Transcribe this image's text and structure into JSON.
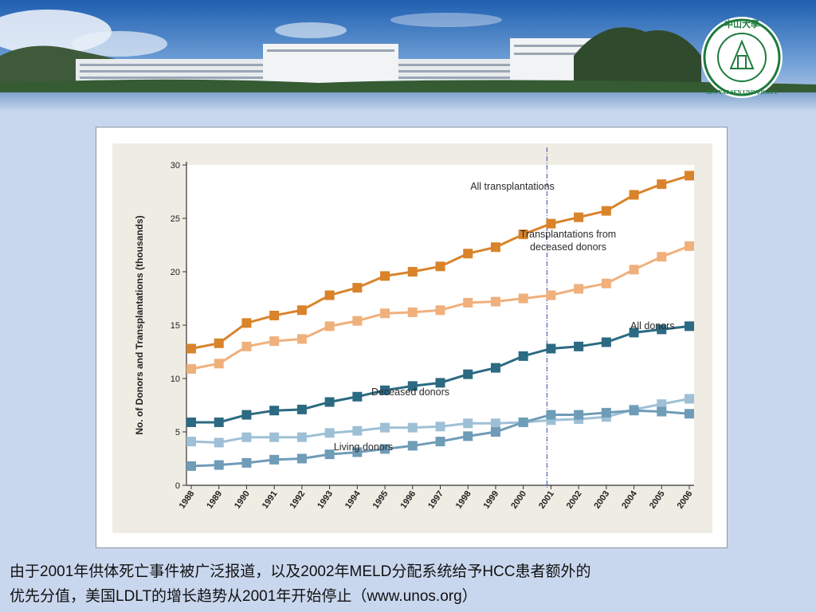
{
  "colors": {
    "background": "#c9d7ee",
    "all_transplantations": "#d9832a",
    "deceased_transplantations": "#f0b07c",
    "all_donors": "#2b6a82",
    "deceased_donors": "#9ec0d6",
    "living_donors": "#6f9cb7",
    "marker_line": "#3349b8"
  },
  "logo": {
    "name": "sun-yat-sen-university-seal",
    "text_top": "中山大學",
    "text_bottom": "SUN YAT-SEN UNIVERSITY"
  },
  "chart_data": {
    "type": "line",
    "ylabel": "No. of Donors and Transplantations (thousands)",
    "xlabel": "",
    "ylim": [
      0,
      30
    ],
    "yticks": [
      0,
      5,
      10,
      15,
      20,
      25,
      30
    ],
    "categories": [
      "1988",
      "1989",
      "1990",
      "1991",
      "1992",
      "1993",
      "1994",
      "1995",
      "1996",
      "1997",
      "1998",
      "1999",
      "2000",
      "2001",
      "2002",
      "2003",
      "2004",
      "2005",
      "2006"
    ],
    "vertical_marker": "2001",
    "grid": false,
    "series": [
      {
        "name": "All transplantations",
        "key": "all_transplantations",
        "values": [
          12.8,
          13.3,
          15.2,
          15.9,
          16.4,
          17.8,
          18.5,
          19.6,
          20.0,
          20.5,
          21.7,
          22.3,
          23.5,
          24.5,
          25.1,
          25.7,
          27.2,
          28.2,
          29.0
        ]
      },
      {
        "name": "Transplantations from deceased donors",
        "key": "deceased_transplantations",
        "values": [
          10.9,
          11.4,
          13.0,
          13.5,
          13.7,
          14.9,
          15.4,
          16.1,
          16.2,
          16.4,
          17.1,
          17.2,
          17.5,
          17.8,
          18.4,
          18.9,
          20.2,
          21.4,
          22.4
        ]
      },
      {
        "name": "All donors",
        "key": "all_donors",
        "values": [
          5.9,
          5.9,
          6.6,
          7.0,
          7.1,
          7.8,
          8.3,
          8.9,
          9.3,
          9.6,
          10.4,
          11.0,
          12.1,
          12.8,
          13.0,
          13.4,
          14.3,
          14.6,
          14.9
        ]
      },
      {
        "name": "Deceased donors",
        "key": "deceased_donors",
        "values": [
          4.1,
          4.0,
          4.5,
          4.5,
          4.5,
          4.9,
          5.1,
          5.4,
          5.4,
          5.5,
          5.8,
          5.8,
          5.9,
          6.1,
          6.2,
          6.4,
          7.1,
          7.6,
          8.1
        ]
      },
      {
        "name": "Living donors",
        "key": "living_donors",
        "values": [
          1.8,
          1.9,
          2.1,
          2.4,
          2.5,
          2.9,
          3.1,
          3.4,
          3.7,
          4.1,
          4.6,
          5.0,
          5.9,
          6.6,
          6.6,
          6.8,
          7.0,
          6.9,
          6.7
        ]
      }
    ],
    "annotations": [
      {
        "series": "all_transplantations",
        "lines": [
          "All transplantations"
        ]
      },
      {
        "series": "deceased_transplantations",
        "lines": [
          "Transplantations from",
          "deceased donors"
        ]
      },
      {
        "series": "all_donors",
        "lines": [
          "All donors"
        ]
      },
      {
        "series": "deceased_donors",
        "lines": [
          "Deceased donors"
        ]
      },
      {
        "series": "living_donors",
        "lines": [
          "Living donors"
        ]
      }
    ]
  },
  "caption": {
    "line1": "由于2001年供体死亡事件被广泛报道，以及2002年MELD分配系统给予HCC患者额外的",
    "line2": "优先分值，美国LDLT的增长趋势从2001年开始停止（www.unos.org）"
  }
}
